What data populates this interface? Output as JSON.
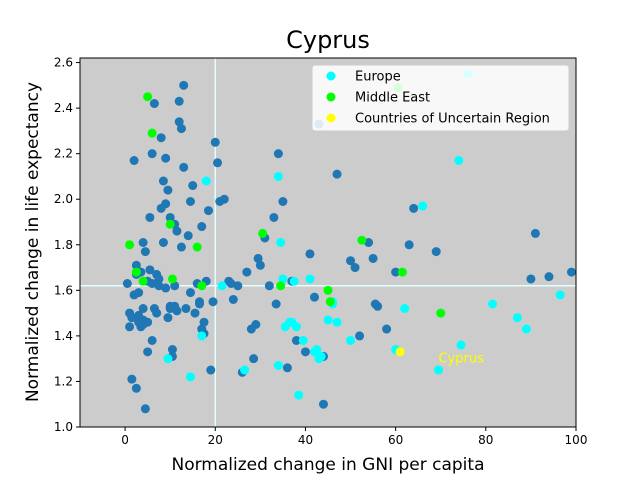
{
  "chart_data": {
    "type": "scatter",
    "title": "Cyprus",
    "xlabel": "Normalized change in GNI per capita",
    "ylabel": "Normalized change in life expectancy",
    "xlim": [
      -10,
      100
    ],
    "ylim": [
      1.0,
      2.62
    ],
    "x_ticks": [
      0,
      20,
      40,
      60,
      80,
      100
    ],
    "y_ticks": [
      1.0,
      1.2,
      1.4,
      1.6,
      1.8,
      2.0,
      2.2,
      2.4,
      2.6
    ],
    "x_tick_labels": [
      "0",
      "20",
      "40",
      "60",
      "80",
      "100"
    ],
    "y_tick_labels": [
      "1.0",
      "1.2",
      "1.4",
      "1.6",
      "1.8",
      "2.0",
      "2.2",
      "2.4",
      "2.6"
    ],
    "reference_lines": {
      "x": 20.0,
      "y": 1.62,
      "color": "#e0ffff"
    },
    "background_color": "#cccccc",
    "grid": false,
    "legend_position": "top-right",
    "colors": {
      "other": "#1f77b4",
      "europe": "#00ffff",
      "middle_east": "#00ff00",
      "uncertain": "#ffff00"
    },
    "series": [
      {
        "key": "other",
        "x": [
          0.5,
          1.0,
          1.5,
          2.0,
          2.5,
          3.0,
          3.0,
          3.5,
          4.0,
          4.0,
          4.5,
          5.0,
          5.0,
          5.5,
          6.0,
          6.5,
          7.0,
          7.5,
          8.0,
          8.5,
          9.0,
          9.0,
          9.5,
          10.0,
          10.5,
          11.0,
          11.0,
          11.5,
          12.0,
          12.0,
          12.5,
          13.0,
          14.0,
          14.5,
          15.0,
          16.0,
          16.5,
          17.0,
          17.5,
          18.0,
          18.5,
          19.0,
          20.0,
          20.5,
          21.0,
          22.0,
          23.0,
          24.0,
          25.0,
          26.0,
          27.0,
          28.0,
          28.5,
          29.5,
          30.0,
          31.0,
          32.0,
          33.0,
          34.0,
          35.0,
          36.0,
          37.0,
          38.0,
          40.0,
          41.0,
          42.0,
          43.0,
          44.0,
          47.0,
          50.0,
          51.0,
          52.0,
          54.0,
          55.0,
          56.0,
          58.0,
          60.0,
          63.0,
          64.0,
          69.0,
          90.0,
          91.0,
          94.0,
          99.0,
          1.5,
          2.5,
          4.5,
          6.0,
          7.0,
          8.0,
          9.5,
          10.5,
          11.5,
          13.0,
          14.5,
          15.5,
          16.5,
          17.5,
          2.0,
          3.5,
          5.5,
          8.5,
          10.0,
          12.5,
          3.0,
          4.0,
          6.0,
          9.0,
          11.0,
          13.5,
          17.0,
          19.5,
          23.5,
          29.0,
          33.5,
          44.0,
          55.5,
          1.0,
          5.0,
          6.5,
          2.5,
          4.0,
          7.5,
          10.0
        ],
        "y": [
          1.63,
          1.44,
          1.48,
          1.58,
          1.67,
          1.49,
          1.46,
          1.68,
          1.52,
          1.81,
          1.77,
          1.46,
          1.64,
          1.69,
          2.2,
          1.52,
          1.67,
          1.62,
          2.27,
          2.08,
          2.18,
          1.61,
          1.48,
          1.52,
          1.31,
          1.89,
          1.53,
          1.51,
          2.43,
          2.34,
          2.31,
          2.14,
          1.84,
          1.59,
          2.06,
          1.63,
          1.55,
          1.43,
          1.46,
          1.64,
          1.95,
          1.25,
          2.25,
          2.16,
          1.99,
          2.0,
          1.64,
          1.56,
          1.62,
          1.24,
          1.68,
          1.43,
          1.3,
          1.74,
          1.71,
          1.83,
          1.62,
          1.92,
          2.2,
          1.99,
          1.26,
          1.64,
          1.38,
          1.33,
          1.76,
          1.57,
          2.33,
          1.1,
          2.11,
          1.73,
          1.7,
          1.4,
          1.81,
          1.74,
          1.53,
          1.43,
          1.68,
          1.8,
          1.96,
          1.77,
          1.65,
          1.85,
          1.66,
          1.68,
          1.21,
          1.17,
          1.08,
          1.38,
          1.5,
          1.96,
          2.04,
          1.34,
          1.86,
          2.5,
          1.99,
          1.5,
          1.54,
          1.41,
          2.17,
          1.44,
          1.92,
          1.81,
          1.53,
          1.79,
          1.59,
          1.47,
          1.63,
          1.98,
          1.62,
          1.52,
          1.88,
          1.55,
          1.63,
          1.45,
          1.54,
          1.31,
          1.54,
          1.5,
          1.33,
          2.42,
          1.71,
          1.45,
          1.65,
          1.92
        ]
      },
      {
        "key": "europe",
        "name": "Europe",
        "x": [
          9.5,
          14.5,
          17.0,
          18.0,
          21.5,
          26.5,
          34.0,
          34.5,
          35.0,
          35.5,
          37.0,
          37.5,
          38.0,
          38.5,
          39.5,
          41.0,
          42.0,
          42.5,
          43.5,
          45.0,
          46.0,
          47.0,
          50.0,
          60.0,
          62.0,
          66.0,
          69.5,
          74.0,
          74.5,
          81.5,
          87.0,
          89.0,
          96.5,
          76.0,
          34.0,
          43.0,
          36.5,
          46.0
        ],
        "y": [
          1.3,
          1.22,
          1.4,
          2.08,
          1.62,
          1.25,
          2.1,
          1.81,
          1.65,
          1.44,
          1.46,
          1.64,
          1.44,
          1.14,
          1.38,
          1.65,
          1.33,
          1.34,
          1.31,
          1.47,
          1.54,
          1.46,
          1.38,
          1.34,
          1.52,
          1.97,
          1.25,
          2.17,
          1.36,
          1.54,
          1.48,
          1.43,
          1.58,
          2.55,
          1.27,
          1.3,
          1.46,
          1.55
        ]
      },
      {
        "key": "middle_east",
        "name": "Middle East",
        "x": [
          1.0,
          2.5,
          4.0,
          5.0,
          6.0,
          10.0,
          10.5,
          16.0,
          17.0,
          30.5,
          34.5,
          45.0,
          45.5,
          52.5,
          61.5,
          70.0,
          60.5
        ],
        "y": [
          1.8,
          1.68,
          1.64,
          2.45,
          2.29,
          1.89,
          1.65,
          1.79,
          1.62,
          1.85,
          1.62,
          1.6,
          1.55,
          1.82,
          1.68,
          1.5,
          2.49
        ]
      },
      {
        "key": "uncertain",
        "name": "Countries of Uncertain Region",
        "x": [
          61.0
        ],
        "y": [
          1.33
        ]
      }
    ],
    "annotations": [
      {
        "text": "Cyprus",
        "x": 69.5,
        "y": 1.3,
        "color": "#ffff00"
      }
    ]
  }
}
